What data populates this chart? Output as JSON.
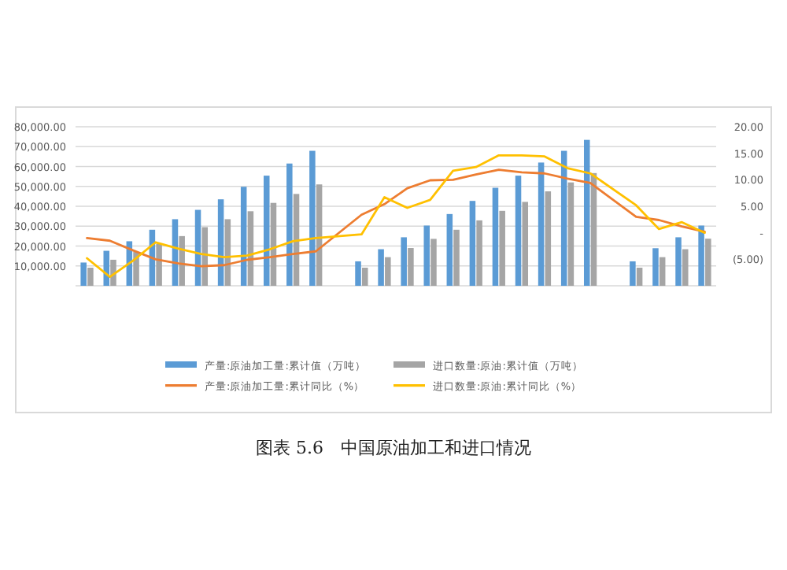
{
  "chart_data": {
    "type": "bar",
    "title": "图表 5.6　中国原油加工和进口情况",
    "categories": [
      null,
      null,
      null,
      null,
      null,
      null,
      null,
      null,
      null,
      null,
      null,
      null,
      null,
      null,
      null,
      null,
      null,
      null,
      null,
      null,
      null,
      null,
      null,
      null,
      null,
      null,
      null,
      null
    ],
    "series": [
      {
        "name": "产量:原油加工量:累计值（万吨）",
        "color": "#5b9bd5",
        "values": [
          11700,
          17600,
          22400,
          28200,
          33500,
          38200,
          43500,
          49800,
          55400,
          61500,
          67900,
          null,
          12300,
          18400,
          24400,
          30300,
          36100,
          42700,
          49300,
          55400,
          62000,
          67900,
          73400,
          null,
          12300,
          18900,
          24400,
          30300
        ]
      },
      {
        "name": "进口数量:原油:累计值（万吨）",
        "color": "#a5a5a5",
        "values": [
          9100,
          13100,
          17000,
          21000,
          25000,
          29500,
          33500,
          37500,
          41700,
          46200,
          51000,
          null,
          9100,
          14400,
          19000,
          23600,
          28200,
          32900,
          37700,
          42200,
          47500,
          52000,
          56700,
          null,
          9100,
          14400,
          18400,
          23700
        ]
      },
      {
        "name": "产量:原油加工量:累计同比（%）",
        "color": "#ed7d31",
        "type": "line",
        "axis": "y2",
        "values": [
          -1.0,
          -1.5,
          -3.3,
          -5.0,
          -5.8,
          -6.3,
          -6.1,
          -5.1,
          -4.6,
          -4.0,
          -3.5,
          null,
          3.4,
          5.4,
          8.4,
          9.9,
          10.0,
          11.0,
          11.9,
          11.4,
          11.2,
          10.2,
          9.4,
          null,
          3.0,
          2.4,
          1.2,
          0.2
        ]
      },
      {
        "name": "进口数量:原油:累计同比（%）",
        "color": "#ffc000",
        "type": "line",
        "axis": "y2",
        "values": [
          -4.8,
          -8.3,
          -5.3,
          -1.8,
          -3.0,
          -4.0,
          -4.6,
          -4.3,
          -3.1,
          -1.6,
          -1.0,
          null,
          -0.3,
          6.7,
          4.7,
          6.2,
          11.7,
          12.4,
          14.6,
          14.6,
          14.4,
          12.2,
          11.2,
          null,
          5.2,
          0.7,
          2.0,
          0.0
        ]
      }
    ],
    "ylim": [
      0,
      80000
    ],
    "yticks": [
      {
        "value": 10000,
        "label": "10,000.00"
      },
      {
        "value": 20000,
        "label": "20,000.00"
      },
      {
        "value": 30000,
        "label": "30,000.00"
      },
      {
        "value": 40000,
        "label": "40,000.00"
      },
      {
        "value": 50000,
        "label": "50,000.00"
      },
      {
        "value": 60000,
        "label": "60,000.00"
      },
      {
        "value": 70000,
        "label": "70,000.00"
      },
      {
        "value": 80000,
        "label": "80,000.00"
      }
    ],
    "y2lim": [
      -10,
      20
    ],
    "y2ticks": [
      {
        "value": -5,
        "label": "(5.00)"
      },
      {
        "value": 0,
        "label": "-"
      },
      {
        "value": 5,
        "label": "5.00"
      },
      {
        "value": 10,
        "label": "10.00"
      },
      {
        "value": 15,
        "label": "15.00"
      },
      {
        "value": 20,
        "label": "20.00"
      }
    ],
    "grid": "y",
    "legend": "bottom"
  }
}
